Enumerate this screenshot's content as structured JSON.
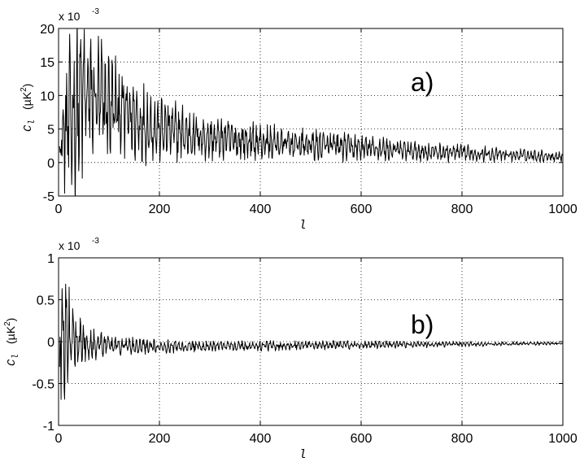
{
  "chart_data": [
    {
      "type": "line",
      "panel_label": "a)",
      "xlabel": "l",
      "ylabel": {
        "symbol": "C",
        "subscript": "l",
        "unit_base": "(µK",
        "unit_exp": "2",
        "unit_close": ")"
      },
      "y_multiplier": {
        "base": "x 10",
        "exponent": "-3"
      },
      "xlim": [
        0,
        1000
      ],
      "ylim": [
        -5,
        20
      ],
      "grid": true,
      "x_ticks": [
        0,
        200,
        400,
        600,
        800,
        1000
      ],
      "x_tick_labels": [
        "0",
        "200",
        "400",
        "600",
        "800",
        "1000"
      ],
      "y_ticks": [
        -5,
        0,
        5,
        10,
        15,
        20
      ],
      "y_tick_labels": [
        "-5",
        "0",
        "5",
        "10",
        "15",
        "20"
      ],
      "series": [
        {
          "style": "oscillating",
          "x": [
            0,
            20,
            50,
            100,
            150,
            200,
            300,
            400,
            500,
            600,
            700,
            800,
            900,
            1000
          ],
          "center": [
            2.0,
            6.0,
            10.0,
            8.5,
            6.5,
            5.0,
            3.6,
            3.0,
            2.6,
            2.2,
            1.7,
            1.4,
            1.1,
            0.9
          ],
          "amplitude": [
            2.0,
            13.0,
            13.0,
            9.0,
            6.5,
            5.0,
            3.4,
            2.8,
            2.4,
            2.0,
            1.6,
            1.3,
            1.0,
            0.8
          ]
        }
      ]
    },
    {
      "type": "line",
      "panel_label": "b)",
      "xlabel": "l",
      "ylabel": {
        "symbol": "C",
        "subscript": "l",
        "unit_base": "(µK",
        "unit_exp": "2",
        "unit_close": ")"
      },
      "y_multiplier": {
        "base": "x 10",
        "exponent": "-3"
      },
      "xlim": [
        0,
        1000
      ],
      "ylim": [
        -1,
        1
      ],
      "grid": true,
      "x_ticks": [
        0,
        200,
        400,
        600,
        800,
        1000
      ],
      "x_tick_labels": [
        "0",
        "200",
        "400",
        "600",
        "800",
        "1000"
      ],
      "y_ticks": [
        -1,
        -0.5,
        0,
        0.5,
        1
      ],
      "y_tick_labels": [
        "-1",
        "-0.5",
        "0",
        "0.5",
        "1"
      ],
      "series": [
        {
          "style": "oscillating",
          "x": [
            0,
            5,
            12,
            25,
            50,
            100,
            200,
            400,
            600,
            800,
            1000
          ],
          "center": [
            0.0,
            0.0,
            0.1,
            0.05,
            0.0,
            -0.05,
            -0.06,
            -0.05,
            -0.04,
            -0.03,
            -0.02
          ],
          "amplitude": [
            1.0,
            1.0,
            0.9,
            0.45,
            0.25,
            0.12,
            0.08,
            0.06,
            0.05,
            0.03,
            0.02
          ]
        }
      ]
    }
  ]
}
